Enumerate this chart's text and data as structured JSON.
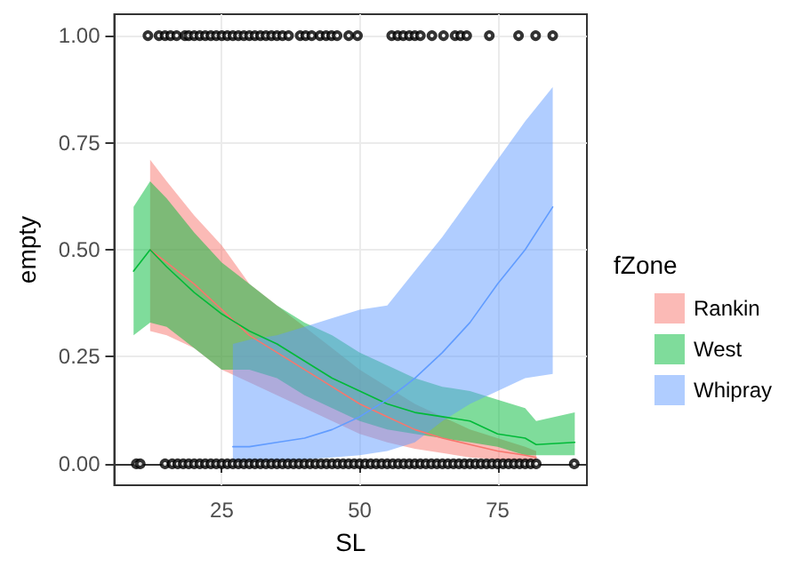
{
  "chart_data": {
    "type": "line",
    "xlabel": "SL",
    "ylabel": "empty",
    "legend_title": "fZone",
    "legend": "right",
    "grid": true,
    "marker": "none",
    "line_style": "solid",
    "xlim": [
      5.5,
      91.2
    ],
    "xticks": [
      25,
      50,
      75
    ],
    "ylim": [
      -0.05,
      1.05
    ],
    "yticks": [
      {
        "value": 0,
        "label": "0.00"
      },
      {
        "value": 0.25,
        "label": "0.25"
      },
      {
        "value": 0.5,
        "label": "0.50"
      },
      {
        "value": 0.75,
        "label": "0.75"
      },
      {
        "value": 1,
        "label": "1.00"
      }
    ],
    "series": [
      {
        "name": "Rankin",
        "color": "#f8766d",
        "x": [
          12,
          15,
          20,
          25,
          30,
          35,
          40,
          45,
          50,
          55,
          60,
          65,
          70,
          75,
          80,
          82
        ],
        "values": [
          0.5,
          0.47,
          0.42,
          0.36,
          0.3,
          0.26,
          0.22,
          0.18,
          0.14,
          0.11,
          0.08,
          0.06,
          0.045,
          0.03,
          0.02,
          0.015
        ],
        "lower": [
          0.31,
          0.3,
          0.27,
          0.22,
          0.19,
          0.16,
          0.13,
          0.1,
          0.07,
          0.05,
          0.035,
          0.025,
          0.015,
          0.01,
          0.006,
          0.005
        ],
        "upper": [
          0.71,
          0.66,
          0.58,
          0.51,
          0.42,
          0.37,
          0.32,
          0.27,
          0.22,
          0.18,
          0.14,
          0.11,
          0.08,
          0.06,
          0.04,
          0.03
        ]
      },
      {
        "name": "West",
        "color": "#00ba38",
        "x": [
          9,
          12,
          15,
          20,
          25,
          30,
          35,
          40,
          45,
          50,
          55,
          60,
          65,
          70,
          75,
          80,
          82,
          89
        ],
        "values": [
          0.45,
          0.5,
          0.46,
          0.4,
          0.35,
          0.31,
          0.28,
          0.24,
          0.2,
          0.17,
          0.14,
          0.12,
          0.11,
          0.1,
          0.07,
          0.06,
          0.045,
          0.05
        ],
        "lower": [
          0.3,
          0.33,
          0.32,
          0.27,
          0.22,
          0.22,
          0.2,
          0.16,
          0.13,
          0.1,
          0.08,
          0.07,
          0.06,
          0.05,
          0.04,
          0.02,
          0.02,
          0.02
        ],
        "upper": [
          0.6,
          0.66,
          0.62,
          0.54,
          0.47,
          0.42,
          0.37,
          0.33,
          0.3,
          0.26,
          0.23,
          0.2,
          0.18,
          0.17,
          0.15,
          0.13,
          0.1,
          0.12
        ]
      },
      {
        "name": "Whipray",
        "color": "#619cff",
        "x": [
          27,
          30,
          35,
          40,
          45,
          50,
          55,
          60,
          65,
          70,
          75,
          80,
          85
        ],
        "values": [
          0.04,
          0.04,
          0.05,
          0.06,
          0.08,
          0.11,
          0.15,
          0.2,
          0.26,
          0.33,
          0.42,
          0.5,
          0.6
        ],
        "lower": [
          0.0,
          0.0,
          0.005,
          0.01,
          0.015,
          0.02,
          0.03,
          0.05,
          0.1,
          0.14,
          0.17,
          0.2,
          0.21
        ],
        "upper": [
          0.28,
          0.29,
          0.3,
          0.32,
          0.34,
          0.36,
          0.37,
          0.45,
          0.53,
          0.62,
          0.71,
          0.8,
          0.88
        ]
      },
      {
        "type": "scatter",
        "color": "#000000",
        "marker": "circle",
        "x": [
          11.6,
          13.6,
          14.7,
          15.7,
          16.8,
          18.3,
          19,
          20,
          21,
          22,
          23,
          24,
          25,
          26,
          27,
          28,
          29,
          30,
          31,
          32,
          33,
          34,
          35,
          36,
          37.1,
          39.2,
          40.2,
          41.3,
          42.8,
          43.9,
          44.9,
          45.9,
          48,
          49.6,
          55.8,
          56.9,
          57.9,
          59,
          60,
          61,
          63.1,
          65.2,
          67.3,
          68.3,
          69.4,
          73.5,
          78.8,
          81.9,
          85
        ],
        "values": [
          1,
          1,
          1,
          1,
          1,
          1,
          1,
          1,
          1,
          1,
          1,
          1,
          1,
          1,
          1,
          1,
          1,
          1,
          1,
          1,
          1,
          1,
          1,
          1,
          1,
          1,
          1,
          1,
          1,
          1,
          1,
          1,
          1,
          1,
          1,
          1,
          1,
          1,
          1,
          1,
          1,
          1,
          1,
          1,
          1,
          1,
          1,
          1,
          1
        ]
      },
      {
        "type": "scatter",
        "color": "#000000",
        "marker": "circle",
        "x": [
          9.5,
          10.2,
          14.7,
          16,
          17,
          18,
          19,
          20,
          21,
          22,
          23,
          24,
          25,
          26,
          27,
          28,
          29,
          30,
          31,
          32,
          33,
          34,
          35,
          36,
          37,
          38,
          39,
          40,
          41,
          42,
          43,
          44,
          45,
          46,
          47,
          48,
          49,
          50,
          51,
          52,
          53,
          54,
          55,
          56,
          57,
          58,
          59,
          60,
          61,
          62,
          63,
          64,
          65,
          66,
          67,
          68,
          69,
          70,
          71,
          72,
          73,
          74,
          75,
          76,
          77,
          78,
          79,
          80,
          81,
          82,
          88.9
        ],
        "values": [
          0,
          0,
          0,
          0,
          0,
          0,
          0,
          0,
          0,
          0,
          0,
          0,
          0,
          0,
          0,
          0,
          0,
          0,
          0,
          0,
          0,
          0,
          0,
          0,
          0,
          0,
          0,
          0,
          0,
          0,
          0,
          0,
          0,
          0,
          0,
          0,
          0,
          0,
          0,
          0,
          0,
          0,
          0,
          0,
          0,
          0,
          0,
          0,
          0,
          0,
          0,
          0,
          0,
          0,
          0,
          0,
          0,
          0,
          0,
          0,
          0,
          0,
          0,
          0,
          0,
          0,
          0,
          0,
          0,
          0,
          0
        ]
      }
    ]
  }
}
